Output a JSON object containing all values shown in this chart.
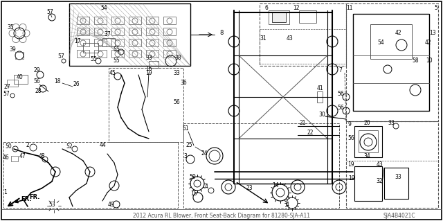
{
  "fig_width": 6.4,
  "fig_height": 3.19,
  "dpi": 100,
  "bg_color": "#ffffff",
  "title": "2012 Acura RL Blower, Front Seat-Back Diagram for 81280-SJA-A11",
  "diagram_code": "SJA4B4021C",
  "bottom_label": "2012 Acura RL Blower, Front Seat-Back Diagram for 81280-SJA-A11"
}
